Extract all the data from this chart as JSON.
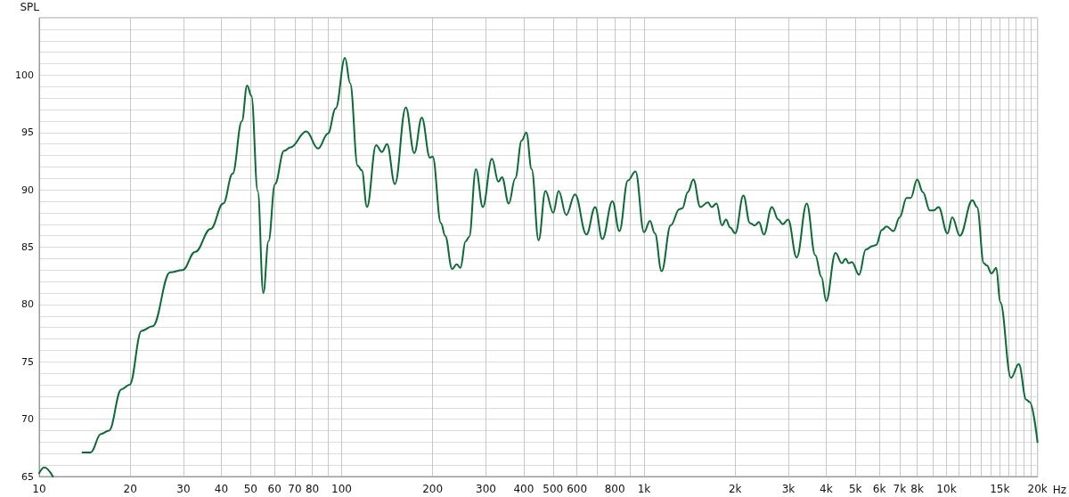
{
  "chart_data": {
    "type": "line",
    "ylabel": "SPL",
    "xlabel": "Hz",
    "log": "x",
    "grid": true,
    "marker": "none",
    "line_style": "solid",
    "xlim": [
      10,
      20000
    ],
    "ylim": [
      65,
      105
    ],
    "xticks": [
      10,
      20,
      30,
      40,
      50,
      60,
      70,
      80,
      {
        "value": 90,
        "label": null
      },
      100,
      200,
      300,
      400,
      500,
      600,
      {
        "value": 700,
        "label": null
      },
      800,
      {
        "value": 900,
        "label": null
      },
      {
        "value": 1000,
        "label": "1k"
      },
      {
        "value": 2000,
        "label": "2k"
      },
      {
        "value": 3000,
        "label": "3k"
      },
      {
        "value": 4000,
        "label": "4k"
      },
      {
        "value": 5000,
        "label": "5k"
      },
      {
        "value": 6000,
        "label": "6k"
      },
      {
        "value": 7000,
        "label": "7k"
      },
      {
        "value": 8000,
        "label": "8k"
      },
      {
        "value": 9000,
        "label": null
      },
      {
        "value": 10000,
        "label": "10k"
      },
      {
        "value": 11000,
        "label": null
      },
      {
        "value": 12000,
        "label": null
      },
      {
        "value": 13000,
        "label": null
      },
      {
        "value": 14000,
        "label": null
      },
      {
        "value": 15000,
        "label": "15k"
      },
      {
        "value": 16000,
        "label": null
      },
      {
        "value": 17000,
        "label": null
      },
      {
        "value": 18000,
        "label": null
      },
      {
        "value": 19000,
        "label": null
      },
      {
        "value": 20000,
        "label": "20k"
      }
    ],
    "yticks": [
      65,
      {
        "value": 66,
        "label": null
      },
      {
        "value": 67,
        "label": null
      },
      {
        "value": 68,
        "label": null
      },
      {
        "value": 69,
        "label": null
      },
      70,
      {
        "value": 71,
        "label": null
      },
      {
        "value": 72,
        "label": null
      },
      {
        "value": 73,
        "label": null
      },
      {
        "value": 74,
        "label": null
      },
      75,
      {
        "value": 76,
        "label": null
      },
      {
        "value": 77,
        "label": null
      },
      {
        "value": 78,
        "label": null
      },
      {
        "value": 79,
        "label": null
      },
      80,
      {
        "value": 81,
        "label": null
      },
      {
        "value": 82,
        "label": null
      },
      {
        "value": 83,
        "label": null
      },
      {
        "value": 84,
        "label": null
      },
      85,
      {
        "value": 86,
        "label": null
      },
      {
        "value": 87,
        "label": null
      },
      {
        "value": 88,
        "label": null
      },
      {
        "value": 89,
        "label": null
      },
      90,
      {
        "value": 91,
        "label": null
      },
      {
        "value": 92,
        "label": null
      },
      {
        "value": 93,
        "label": null
      },
      {
        "value": 94,
        "label": null
      },
      95,
      {
        "value": 96,
        "label": null
      },
      {
        "value": 97,
        "label": null
      },
      {
        "value": 98,
        "label": null
      },
      {
        "value": 99,
        "label": null
      },
      100,
      {
        "value": 101,
        "label": null
      },
      {
        "value": 102,
        "label": null
      },
      {
        "value": 103,
        "label": null
      },
      {
        "value": 104,
        "label": null
      },
      {
        "value": 105,
        "label": null
      }
    ],
    "series": [
      {
        "color": "#0b6b35",
        "x": [
          10,
          10.4,
          11.1,
          12.9,
          13.9,
          14.8,
          16.0,
          17.0,
          18.7,
          19.9,
          21.8,
          23.7,
          27.1,
          29.8,
          32.8,
          36.9,
          40.6,
          43.6,
          46.8,
          48.7,
          50.3,
          52.8,
          55.1,
          57.3,
          60.2,
          64.5,
          67.7,
          76.4,
          83.6,
          90.1,
          95.6,
          102.6,
          106.7,
          113,
          116.6,
          121.3,
          130,
          135.9,
          141.3,
          150,
          163,
          173.9,
          184.1,
          196,
          200,
          213,
          220,
          232,
          240,
          247,
          257,
          264,
          278,
          293,
          314,
          330,
          339,
          357,
          375,
          394,
          408,
          425,
          448,
          472,
          501,
          522,
          553,
          591,
          645,
          689,
          728,
          786,
          829,
          884,
          937,
          1000,
          1046,
          1086,
          1143,
          1225,
          1308,
          1339,
          1395,
          1456,
          1534,
          1626,
          1674,
          1736,
          1810,
          1866,
          1927,
          2002,
          2131,
          2239,
          2323,
          2399,
          2489,
          2647,
          2780,
          2875,
          2993,
          3197,
          3451,
          3682,
          3860,
          4001,
          4296,
          4508,
          4640,
          4750,
          4865,
          5140,
          5412,
          5691,
          5857,
          6112,
          6335,
          6678,
          7003,
          7382,
          7618,
          7999,
          8354,
          8812,
          9073,
          9410,
          10080,
          10450,
          11070,
          12180,
          12620,
          13290,
          13600,
          14090,
          14600,
          15060,
          16340,
          17340,
          18360,
          18830,
          20000
        ],
        "values": [
          65.3,
          65.8,
          65.0,
          null,
          67.1,
          67.1,
          68.7,
          69.0,
          72.6,
          73.0,
          77.7,
          78.1,
          82.8,
          83.0,
          84.6,
          86.6,
          88.8,
          91.4,
          96.0,
          99.1,
          98.2,
          89.9,
          81.0,
          85.5,
          90.5,
          93.4,
          93.7,
          95.1,
          93.6,
          94.9,
          97.1,
          101.5,
          99.3,
          92.1,
          91.7,
          88.5,
          93.9,
          93.3,
          94.0,
          90.5,
          97.2,
          93.2,
          96.3,
          92.8,
          92.9,
          87.1,
          86.0,
          83.1,
          83.5,
          83.2,
          85.5,
          85.9,
          91.8,
          88.5,
          92.7,
          90.7,
          91.1,
          88.8,
          91.0,
          94.3,
          95.0,
          91.8,
          85.6,
          89.9,
          88.0,
          89.9,
          87.8,
          89.6,
          86.1,
          88.5,
          85.7,
          89.0,
          86.4,
          90.8,
          91.6,
          86.3,
          87.3,
          86.2,
          82.9,
          86.9,
          88.3,
          88.4,
          89.8,
          90.9,
          88.5,
          88.9,
          88.5,
          88.8,
          86.9,
          87.4,
          86.7,
          86.2,
          89.5,
          87.1,
          86.9,
          87.2,
          86.1,
          88.5,
          87.4,
          87.0,
          87.4,
          84.1,
          88.8,
          84.3,
          82.4,
          80.3,
          84.5,
          83.6,
          84.0,
          83.6,
          83.7,
          82.6,
          84.8,
          85.1,
          85.2,
          86.5,
          86.8,
          86.4,
          87.6,
          89.3,
          89.3,
          90.9,
          89.8,
          88.2,
          88.2,
          88.5,
          86.2,
          87.6,
          86.0,
          89.1,
          88.5,
          83.6,
          83.4,
          82.7,
          83.2,
          80.2,
          73.6,
          74.8,
          71.7,
          71.5,
          68.0
        ]
      }
    ]
  }
}
